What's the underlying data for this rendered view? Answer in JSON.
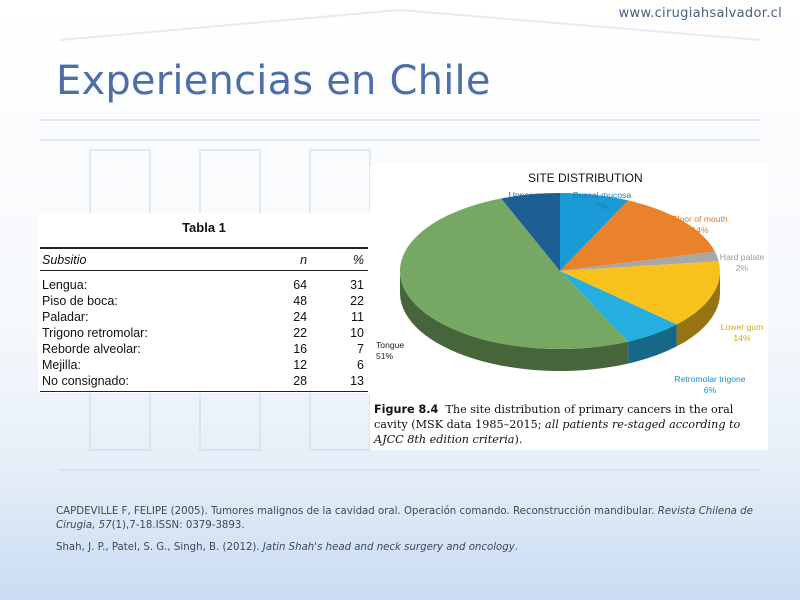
{
  "site_url": "www.cirugiahsalvador.cl",
  "title": "Experiencias en Chile",
  "table": {
    "caption": "Tabla 1",
    "headers": [
      "Subsitio",
      "n",
      "%"
    ],
    "rows": [
      [
        "Lengua:",
        "64",
        "31"
      ],
      [
        "Piso de boca:",
        "48",
        "22"
      ],
      [
        "Paladar:",
        "24",
        "11"
      ],
      [
        "Trigono retromolar:",
        "22",
        "10"
      ],
      [
        "Reborde alveolar:",
        "16",
        "7"
      ],
      [
        "Mejilla:",
        "12",
        "6"
      ],
      [
        "No consignado:",
        "28",
        "13"
      ]
    ]
  },
  "chart_data": {
    "type": "pie",
    "title": "SITE DISTRIBUTION",
    "slices": [
      {
        "label": "Buccal mucosa",
        "value": 7,
        "display": "7%",
        "color": "#1a9ad6"
      },
      {
        "label": "Floor of mouth",
        "value": 14,
        "display": "14%",
        "color": "#e9822a"
      },
      {
        "label": "Hard palate",
        "value": 2,
        "display": "2%",
        "color": "#a8a8a8"
      },
      {
        "label": "Lower gum",
        "value": 14,
        "display": "14%",
        "color": "#f8c21c"
      },
      {
        "label": "Retromolar trigone",
        "value": 6,
        "display": "6%",
        "color": "#27aee0"
      },
      {
        "label": "Tongue",
        "value": 51,
        "display": "51%",
        "color": "#76a863"
      },
      {
        "label": "Upper gum",
        "value": 6,
        "display": "6%",
        "color": "#1b5f94"
      }
    ],
    "label_colors": {
      "Buccal mucosa": "#1a7fc0",
      "Floor of mouth": "#e07a1f",
      "Hard palate": "#999999",
      "Lower gum": "#e0a800",
      "Retromolar trigone": "#1b8fc8",
      "Tongue": "#222222",
      "Upper gum": "#1b5f94"
    }
  },
  "figure_caption": {
    "label": "Figure 8.4",
    "text": "The site distribution of primary cancers in the oral cavity (MSK data 1985–2015; ",
    "italic": "all patients re-staged according to AJCC 8th edition criteria",
    "end": ")."
  },
  "references": [
    {
      "plain": "CAPDEVILLE F, FELIPE (2005). Tumores malignos de la cavidad oral. Operación comando. Reconstrucción mandibular. ",
      "italic": "Revista Chilena de Cirugia, 57",
      "tail": "(1),7-18.ISSN: 0379-3893."
    },
    {
      "plain": "Shah, J. P., Patel, S. G., Singh, B. (2012). ",
      "italic": "Jatin Shah's head and neck surgery and oncology",
      "tail": "."
    }
  ]
}
